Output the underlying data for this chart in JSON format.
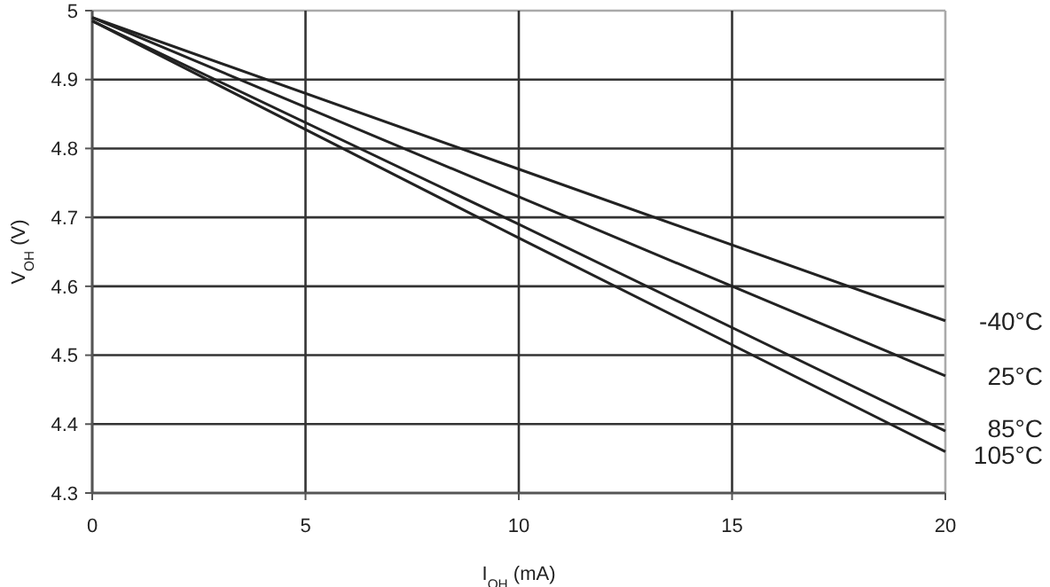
{
  "chart_data": {
    "type": "line",
    "xlabel": "I$_{OH}$ (mA)",
    "ylabel": "V$_{OH}$ (V)",
    "x": [
      0,
      10,
      20
    ],
    "series": [
      {
        "name": "-40°C",
        "color": "#222222",
        "values": [
          4.99,
          4.77,
          4.55
        ]
      },
      {
        "name": "25°C",
        "color": "#222222",
        "values": [
          4.99,
          4.73,
          4.47
        ]
      },
      {
        "name": "85°C",
        "color": "#222222",
        "values": [
          4.985,
          4.69,
          4.39
        ]
      },
      {
        "name": "105°C",
        "color": "#222222",
        "values": [
          4.985,
          4.67,
          4.36
        ]
      }
    ],
    "xlim": [
      0,
      20
    ],
    "xticks": [
      0,
      5,
      10,
      15,
      20
    ],
    "ylim": [
      4.3,
      5
    ],
    "yticks": [
      4.3,
      4.4,
      4.5,
      4.6,
      4.7,
      4.8,
      4.9,
      5
    ],
    "grid": true,
    "legend": false,
    "marker": "none",
    "line_style": "solid"
  }
}
